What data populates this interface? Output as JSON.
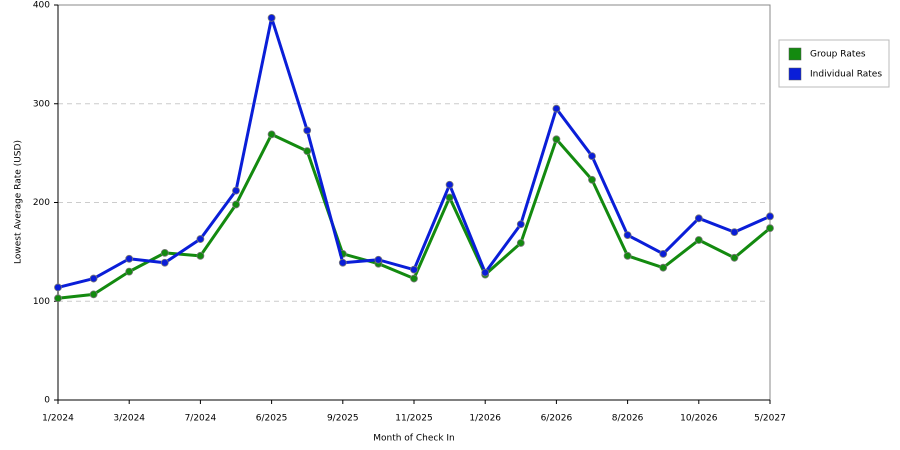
{
  "chart_data": {
    "type": "line",
    "x_label": "Month of Check In",
    "y_label": "Lowest Average Rate (USD)",
    "categories": [
      "1/2024",
      null,
      "3/2024",
      null,
      "7/2024",
      null,
      "6/2025",
      null,
      "9/2025",
      null,
      "11/2025",
      null,
      "1/2026",
      null,
      "6/2026",
      null,
      "8/2026",
      null,
      "10/2026",
      null,
      "5/2027"
    ],
    "series": [
      {
        "name": "Group Rates",
        "color": "#138a0f",
        "values": [
          103,
          107,
          130,
          149,
          146,
          198,
          269,
          252,
          148,
          138,
          123,
          205,
          127,
          159,
          264,
          223,
          146,
          134,
          162,
          144,
          174
        ]
      },
      {
        "name": "Individual Rates",
        "color": "#0a1ed8",
        "values": [
          114,
          123,
          143,
          139,
          163,
          212,
          387,
          273,
          139,
          142,
          132,
          218,
          129,
          178,
          295,
          247,
          167,
          148,
          184,
          170,
          186
        ]
      }
    ],
    "ylim": [
      0,
      400
    ],
    "yticks": [
      0,
      100,
      200,
      300,
      400
    ],
    "grid": true,
    "legend": "right"
  }
}
